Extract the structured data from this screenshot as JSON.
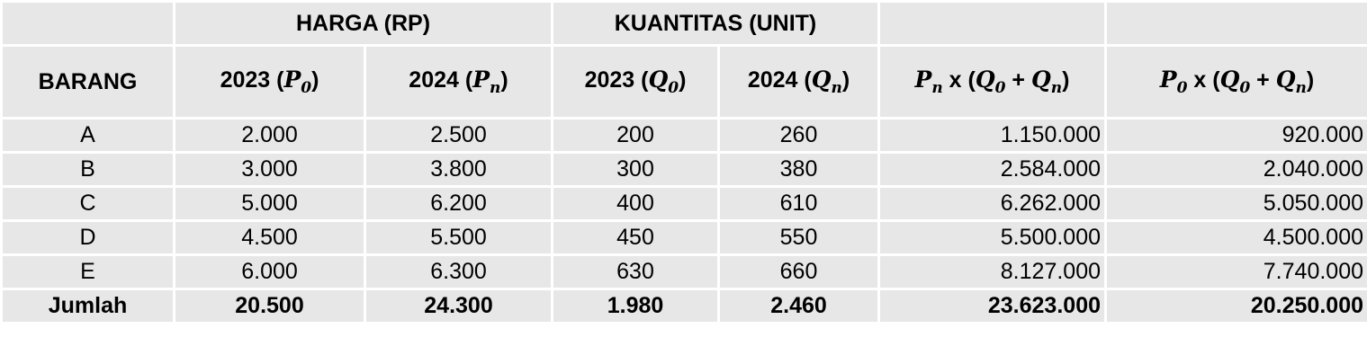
{
  "table": {
    "group_headers": [
      "HARGA (RP)",
      "KUANTITAS (UNIT)"
    ],
    "columns": [
      [
        {
          "text": "BARANG",
          "kind": "plain"
        }
      ],
      [
        {
          "text": "2023 (",
          "kind": "plain"
        },
        {
          "text": "P",
          "kind": "var"
        },
        {
          "text": "0",
          "kind": "sub"
        },
        {
          "text": ")",
          "kind": "plain"
        }
      ],
      [
        {
          "text": "2024 (",
          "kind": "plain"
        },
        {
          "text": "P",
          "kind": "var"
        },
        {
          "text": "n",
          "kind": "sub"
        },
        {
          "text": ")",
          "kind": "plain"
        }
      ],
      [
        {
          "text": "2023 (",
          "kind": "plain"
        },
        {
          "text": "Q",
          "kind": "var"
        },
        {
          "text": "0",
          "kind": "sub"
        },
        {
          "text": ")",
          "kind": "plain"
        }
      ],
      [
        {
          "text": "2024 (",
          "kind": "plain"
        },
        {
          "text": "Q",
          "kind": "var"
        },
        {
          "text": "n",
          "kind": "sub"
        },
        {
          "text": ")",
          "kind": "plain"
        }
      ],
      [
        {
          "text": "P",
          "kind": "var"
        },
        {
          "text": "n",
          "kind": "sub"
        },
        {
          "text": " x (",
          "kind": "plain"
        },
        {
          "text": "Q",
          "kind": "var"
        },
        {
          "text": "0",
          "kind": "sub"
        },
        {
          "text": " + ",
          "kind": "plain"
        },
        {
          "text": "Q",
          "kind": "var"
        },
        {
          "text": "n",
          "kind": "sub"
        },
        {
          "text": ")",
          "kind": "plain"
        }
      ],
      [
        {
          "text": "P",
          "kind": "var"
        },
        {
          "text": "0",
          "kind": "sub"
        },
        {
          "text": " x (",
          "kind": "plain"
        },
        {
          "text": "Q",
          "kind": "var"
        },
        {
          "text": "0",
          "kind": "sub"
        },
        {
          "text": " + ",
          "kind": "plain"
        },
        {
          "text": "Q",
          "kind": "var"
        },
        {
          "text": "n",
          "kind": "sub"
        },
        {
          "text": ")",
          "kind": "plain"
        }
      ]
    ],
    "rows": [
      [
        "A",
        "2.000",
        "2.500",
        "200",
        "260",
        "1.150.000",
        "920.000"
      ],
      [
        "B",
        "3.000",
        "3.800",
        "300",
        "380",
        "2.584.000",
        "2.040.000"
      ],
      [
        "C",
        "5.000",
        "6.200",
        "400",
        "610",
        "6.262.000",
        "5.050.000"
      ],
      [
        "D",
        "4.500",
        "5.500",
        "450",
        "550",
        "5.500.000",
        "4.500.000"
      ],
      [
        "E",
        "6.000",
        "6.300",
        "630",
        "660",
        "8.127.000",
        "7.740.000"
      ]
    ],
    "total": [
      "Jumlah",
      "20.500",
      "24.300",
      "1.980",
      "2.460",
      "23.623.000",
      "20.250.000"
    ]
  }
}
